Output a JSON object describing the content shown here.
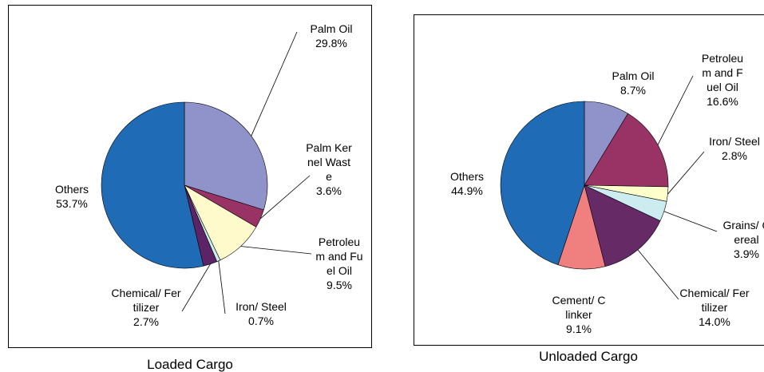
{
  "chart_data": [
    {
      "type": "pie",
      "title": "Loaded Cargo",
      "categories": [
        "Palm Oil",
        "Palm Kernel Waste",
        "Petroleum and Fuel Oil",
        "Iron/ Steel",
        "Chemical/ Fertilizer",
        "Others"
      ],
      "values": [
        29.8,
        3.6,
        9.5,
        0.7,
        2.7,
        53.7
      ],
      "value_labels": [
        "29.8%",
        "3.6%",
        "9.5%",
        "0.7%",
        "2.7%",
        "53.7%"
      ],
      "colors": [
        "#8f93c9",
        "#993366",
        "#fffacc",
        "#cceeee",
        "#5c2466",
        "#1f6bb5"
      ]
    },
    {
      "type": "pie",
      "title": "Unloaded Cargo",
      "categories": [
        "Palm Oil",
        "Petroleum and Fuel Oil",
        "Iron/ Steel",
        "Grains/ Cereal",
        "Chemical/ Fertilizer",
        "Cement/ Clinker",
        "Others"
      ],
      "values": [
        8.7,
        16.6,
        2.8,
        3.9,
        14.0,
        9.1,
        44.9
      ],
      "value_labels": [
        "8.7%",
        "16.6%",
        "2.8%",
        "3.9%",
        "14.0%",
        "9.1%",
        "44.9%"
      ],
      "colors": [
        "#8f93c9",
        "#993366",
        "#ffffcc",
        "#ccecf0",
        "#662a66",
        "#f08080",
        "#1f6bb5"
      ]
    }
  ]
}
